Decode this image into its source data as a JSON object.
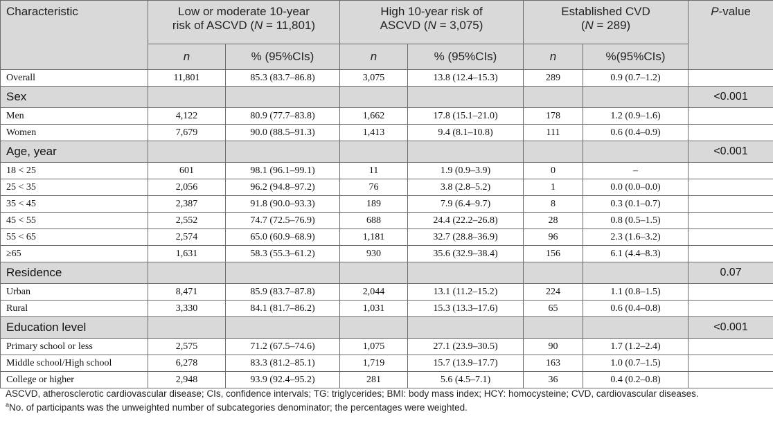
{
  "header": {
    "characteristic": "Characteristic",
    "groups": [
      {
        "line1": "Low or moderate 10-year",
        "line2_pre": "risk of ASCVD (",
        "n_sym": "N",
        "line2_post": " = 11,801)"
      },
      {
        "line1": "High 10-year risk of",
        "line2_pre": "ASCVD (",
        "n_sym": "N",
        "line2_post": " = 3,075)"
      },
      {
        "line1": "Established CVD",
        "line2_pre": "(",
        "n_sym": "N",
        "line2_post": " = 289)"
      }
    ],
    "pvalue_italic": "P",
    "pvalue_rest": "-value",
    "sub": {
      "n": "n",
      "pct1": "% (95%CIs)",
      "pct2": "% (95%CIs)",
      "pct3": "%(95%CIs)"
    }
  },
  "rows": [
    {
      "type": "data",
      "label": "Overall",
      "n1": "11,801",
      "p1": "85.3 (83.7–86.8)",
      "n2": "3,075",
      "p2": "13.8 (12.4–15.3)",
      "n3": "289",
      "p3": "0.9 (0.7–1.2)",
      "pv": ""
    },
    {
      "type": "section",
      "label": "Sex",
      "pv": "<0.001"
    },
    {
      "type": "data",
      "label": "Men",
      "n1": "4,122",
      "p1": "80.9 (77.7–83.8)",
      "n2": "1,662",
      "p2": "17.8 (15.1–21.0)",
      "n3": "178",
      "p3": "1.2 (0.9–1.6)",
      "pv": ""
    },
    {
      "type": "data",
      "label": "Women",
      "n1": "7,679",
      "p1": "90.0 (88.5–91.3)",
      "n2": "1,413",
      "p2": "9.4 (8.1–10.8)",
      "n3": "111",
      "p3": "0.6 (0.4–0.9)",
      "pv": ""
    },
    {
      "type": "section",
      "label": "Age, year",
      "pv": "<0.001"
    },
    {
      "type": "data",
      "label": "18 < 25",
      "n1": "601",
      "p1": "98.1 (96.1–99.1)",
      "n2": "11",
      "p2": "1.9 (0.9–3.9)",
      "n3": "0",
      "p3": "–",
      "pv": ""
    },
    {
      "type": "data",
      "label": "25 < 35",
      "n1": "2,056",
      "p1": "96.2 (94.8–97.2)",
      "n2": "76",
      "p2": "3.8 (2.8–5.2)",
      "n3": "1",
      "p3": "0.0 (0.0–0.0)",
      "pv": ""
    },
    {
      "type": "data",
      "label": "35 < 45",
      "n1": "2,387",
      "p1": "91.8 (90.0–93.3)",
      "n2": "189",
      "p2": "7.9 (6.4–9.7)",
      "n3": "8",
      "p3": "0.3 (0.1–0.7)",
      "pv": ""
    },
    {
      "type": "data",
      "label": "45 < 55",
      "n1": "2,552",
      "p1": "74.7 (72.5–76.9)",
      "n2": "688",
      "p2": "24.4 (22.2–26.8)",
      "n3": "28",
      "p3": "0.8 (0.5–1.5)",
      "pv": ""
    },
    {
      "type": "data",
      "label": "55 < 65",
      "n1": "2,574",
      "p1": "65.0 (60.9–68.9)",
      "n2": "1,181",
      "p2": "32.7 (28.8–36.9)",
      "n3": "96",
      "p3": "2.3 (1.6–3.2)",
      "pv": ""
    },
    {
      "type": "data",
      "label": "≥65",
      "n1": "1,631",
      "p1": "58.3 (55.3–61.2)",
      "n2": "930",
      "p2": "35.6 (32.9–38.4)",
      "n3": "156",
      "p3": "6.1 (4.4–8.3)",
      "pv": ""
    },
    {
      "type": "section",
      "label": "Residence",
      "pv": "0.07"
    },
    {
      "type": "data",
      "label": "Urban",
      "n1": "8,471",
      "p1": "85.9 (83.7–87.8)",
      "n2": "2,044",
      "p2": "13.1 (11.2–15.2)",
      "n3": "224",
      "p3": "1.1 (0.8–1.5)",
      "pv": ""
    },
    {
      "type": "data",
      "label": "Rural",
      "n1": "3,330",
      "p1": "84.1 (81.7–86.2)",
      "n2": "1,031",
      "p2": "15.3 (13.3–17.6)",
      "n3": "65",
      "p3": "0.6 (0.4–0.8)",
      "pv": ""
    },
    {
      "type": "section",
      "label": "Education level",
      "pv": "<0.001"
    },
    {
      "type": "data",
      "label": "Primary school or less",
      "n1": "2,575",
      "p1": "71.2 (67.5–74.6)",
      "n2": "1,075",
      "p2": "27.1 (23.9–30.5)",
      "n3": "90",
      "p3": "1.7 (1.2–2.4)",
      "pv": ""
    },
    {
      "type": "data",
      "label": "Middle school/High school",
      "n1": "6,278",
      "p1": "83.3 (81.2–85.1)",
      "n2": "1,719",
      "p2": "15.7 (13.9–17.7)",
      "n3": "163",
      "p3": "1.0 (0.7–1.5)",
      "pv": ""
    },
    {
      "type": "data",
      "label": "College or higher",
      "n1": "2,948",
      "p1": "93.9 (92.4–95.2)",
      "n2": "281",
      "p2": "5.6 (4.5–7.1)",
      "n3": "36",
      "p3": "0.4 (0.2–0.8)",
      "pv": ""
    }
  ],
  "footnotes": {
    "line1": "ASCVD, atherosclerotic cardiovascular disease; CIs, confidence intervals; TG: triglycerides; BMI: body mass index; HCY: homocysteine; CVD, cardiovascular diseases.",
    "line2_sup": "a",
    "line2": "No. of participants was the unweighted number of subcategories denominator; the percentages were weighted."
  }
}
